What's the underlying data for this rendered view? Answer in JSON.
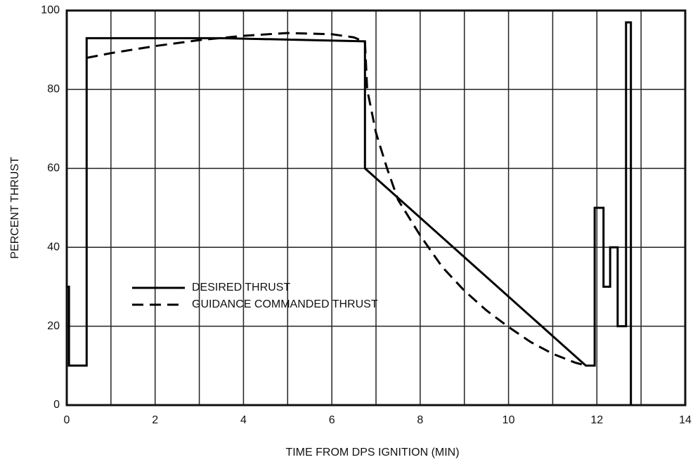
{
  "chart_data": {
    "type": "line",
    "xlabel": "TIME FROM DPS IGNITION (MIN)",
    "ylabel": "PERCENT THRUST",
    "xlim": [
      0,
      14
    ],
    "ylim": [
      0,
      100
    ],
    "xticks": [
      0,
      2,
      4,
      6,
      8,
      10,
      12,
      14
    ],
    "yticks": [
      0,
      20,
      40,
      60,
      80,
      100
    ],
    "x_minor_grid": [
      1,
      3,
      5,
      7,
      9,
      11,
      13
    ],
    "grid": true,
    "legend": "lower left",
    "series": [
      {
        "name": "DESIRED THRUST",
        "color": "#000000",
        "dash": "solid",
        "x": [
          0,
          0.05,
          0.05,
          0.45,
          0.45,
          3.5,
          6.75,
          6.75,
          11.75,
          11.95,
          11.95,
          12.15,
          12.15,
          12.3,
          12.3,
          12.47,
          12.47,
          12.66,
          12.66,
          12.77,
          12.77
        ],
        "values": [
          30,
          30,
          10,
          10,
          93,
          93,
          92.2,
          60,
          10,
          10,
          50,
          50,
          30,
          30,
          40,
          40,
          20,
          20,
          97,
          97,
          0
        ]
      },
      {
        "name": "GUIDANCE COMMANDED THRUST",
        "color": "#000000",
        "dash": "dashed",
        "x": [
          0.45,
          1,
          2,
          3,
          4,
          5,
          6,
          6.5,
          6.75,
          6.8,
          7,
          7.25,
          7.5,
          8,
          8.5,
          9,
          9.5,
          10,
          10.5,
          11,
          11.5,
          11.75
        ],
        "values": [
          88,
          89.2,
          91,
          92.5,
          93.6,
          94.3,
          94,
          93.2,
          92,
          80,
          69,
          60,
          52,
          43,
          35,
          29,
          24,
          19.8,
          16,
          13,
          10.8,
          10
        ]
      }
    ]
  }
}
